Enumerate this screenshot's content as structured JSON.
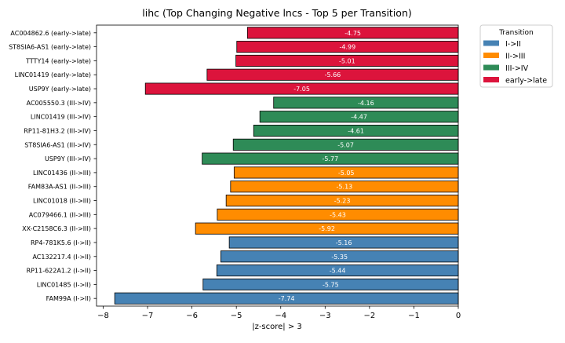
{
  "chart_data": {
    "type": "bar",
    "orientation": "horizontal",
    "title": "lihc (Top Changing Negative lncs - Top 5 per Transition)",
    "xlabel": "|z-score| > 3",
    "ylabel": "",
    "xlim": [
      -8.15,
      0
    ],
    "xticks": [
      -8,
      -7,
      -6,
      -5,
      -4,
      -3,
      -2,
      -1,
      0
    ],
    "grid": false,
    "legend": {
      "title": "Transition",
      "placement": "outside-top-right",
      "entries": [
        {
          "name": "I->II",
          "color": "#4682b4"
        },
        {
          "name": "II->III",
          "color": "#ff8c00"
        },
        {
          "name": "III->IV",
          "color": "#2e8b57"
        },
        {
          "name": "early->late",
          "color": "#dc143c"
        }
      ]
    },
    "bars": [
      {
        "label": "AC004862.6 (early->late)",
        "value": -4.75,
        "value_label": "-4.75",
        "group": "early->late"
      },
      {
        "label": "ST8SIA6-AS1 (early->late)",
        "value": -4.99,
        "value_label": "-4.99",
        "group": "early->late"
      },
      {
        "label": "TTTY14 (early->late)",
        "value": -5.01,
        "value_label": "-5.01",
        "group": "early->late"
      },
      {
        "label": "LINC01419 (early->late)",
        "value": -5.66,
        "value_label": "-5.66",
        "group": "early->late"
      },
      {
        "label": "USP9Y (early->late)",
        "value": -7.05,
        "value_label": "-7.05",
        "group": "early->late"
      },
      {
        "label": "AC005550.3 (III->IV)",
        "value": -4.16,
        "value_label": "-4.16",
        "group": "III->IV"
      },
      {
        "label": "LINC01419 (III->IV)",
        "value": -4.47,
        "value_label": "-4.47",
        "group": "III->IV"
      },
      {
        "label": "RP11-81H3.2 (III->IV)",
        "value": -4.61,
        "value_label": "-4.61",
        "group": "III->IV"
      },
      {
        "label": "ST8SIA6-AS1 (III->IV)",
        "value": -5.07,
        "value_label": "-5.07",
        "group": "III->IV"
      },
      {
        "label": "USP9Y (III->IV)",
        "value": -5.77,
        "value_label": "-5.77",
        "group": "III->IV"
      },
      {
        "label": "LINC01436 (II->III)",
        "value": -5.05,
        "value_label": "-5.05",
        "group": "II->III"
      },
      {
        "label": "FAM83A-AS1 (II->III)",
        "value": -5.13,
        "value_label": "-5.13",
        "group": "II->III"
      },
      {
        "label": "LINC01018 (II->III)",
        "value": -5.23,
        "value_label": "-5.23",
        "group": "II->III"
      },
      {
        "label": "AC079466.1 (II->III)",
        "value": -5.43,
        "value_label": "-5.43",
        "group": "II->III"
      },
      {
        "label": "XX-C2158C6.3 (II->III)",
        "value": -5.92,
        "value_label": "-5.92",
        "group": "II->III"
      },
      {
        "label": "RP4-781K5.6 (I->II)",
        "value": -5.16,
        "value_label": "-5.16",
        "group": "I->II"
      },
      {
        "label": "AC132217.4 (I->II)",
        "value": -5.35,
        "value_label": "-5.35",
        "group": "I->II"
      },
      {
        "label": "RP11-622A1.2 (I->II)",
        "value": -5.44,
        "value_label": "-5.44",
        "group": "I->II"
      },
      {
        "label": "LINC01485 (I->II)",
        "value": -5.75,
        "value_label": "-5.75",
        "group": "I->II"
      },
      {
        "label": "FAM99A (I->II)",
        "value": -7.74,
        "value_label": "-7.74",
        "group": "I->II"
      }
    ]
  }
}
